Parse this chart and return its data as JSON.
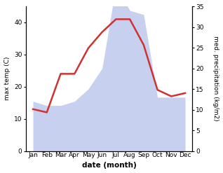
{
  "months": [
    "Jan",
    "Feb",
    "Mar",
    "Apr",
    "May",
    "Jun",
    "Jul",
    "Aug",
    "Sep",
    "Oct",
    "Nov",
    "Dec"
  ],
  "month_x": [
    1,
    2,
    3,
    4,
    5,
    6,
    7,
    8,
    9,
    10,
    11,
    12
  ],
  "temp_max": [
    13,
    12,
    24,
    24,
    32,
    37,
    41,
    41,
    33,
    19,
    17,
    18
  ],
  "precip": [
    12,
    11,
    11,
    12,
    15,
    20,
    40,
    34,
    33,
    13,
    13,
    13
  ],
  "temp_ylim": [
    0,
    45
  ],
  "precip_ylim": [
    0,
    35
  ],
  "temp_yticks": [
    0,
    10,
    20,
    30,
    40
  ],
  "precip_yticks": [
    0,
    5,
    10,
    15,
    20,
    25,
    30,
    35
  ],
  "ylabel_left": "max temp (C)",
  "ylabel_right": "med. precipitation (kg/m2)",
  "xlabel": "date (month)",
  "line_color": "#cc3333",
  "fill_color": "#c8d0f0",
  "fill_alpha": 1.0,
  "line_width": 1.8,
  "bg_color": "#ffffff",
  "label_fontsize": 6.5,
  "tick_fontsize": 6.5,
  "xlabel_fontsize": 7.5
}
